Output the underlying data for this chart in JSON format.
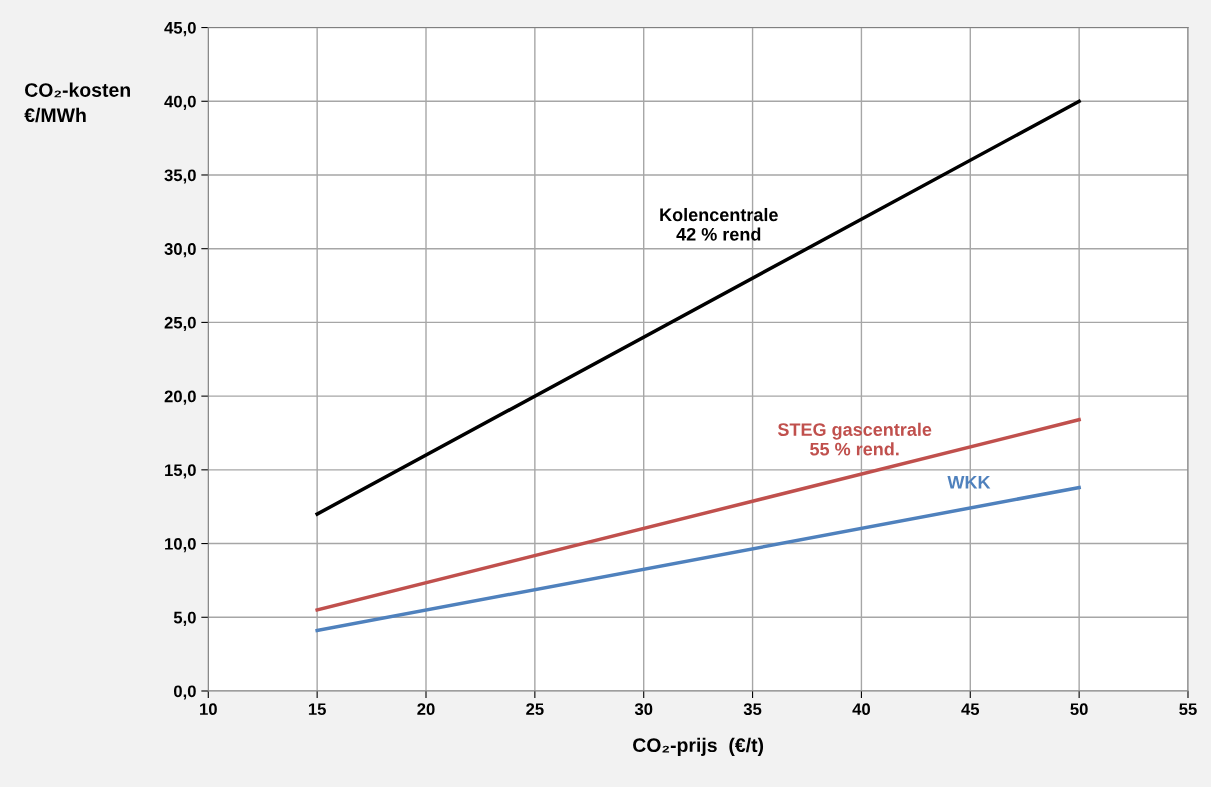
{
  "chart_data": {
    "type": "line",
    "xlabel": "CO₂-prijs  (€/t)",
    "ylabel": "CO₂-kosten\n€/MWh",
    "series": [
      {
        "name": "Kolencentrale\n42 % rend",
        "color": "#000000",
        "values": [
          12.0,
          40.0
        ]
      },
      {
        "name": "STEG gascentrale\n55 % rend.",
        "color": "#c0504d",
        "values": [
          5.5,
          18.4
        ]
      },
      {
        "name": "WKK",
        "color": "#4f81bd",
        "values": [
          4.1,
          13.8
        ]
      }
    ],
    "x": [
      15,
      50
    ],
    "xlim": [
      10,
      55
    ],
    "xticks": [
      10,
      15,
      20,
      25,
      30,
      35,
      40,
      45,
      50,
      55
    ],
    "ylim": [
      0,
      45
    ],
    "yticks": [
      {
        "value": 0,
        "label": "0,0"
      },
      {
        "value": 5,
        "label": "5,0"
      },
      {
        "value": 10,
        "label": "10,0"
      },
      {
        "value": 15,
        "label": "15,0"
      },
      {
        "value": 20,
        "label": "20,0"
      },
      {
        "value": 25,
        "label": "25,0"
      },
      {
        "value": 30,
        "label": "30,0"
      },
      {
        "value": 35,
        "label": "35,0"
      },
      {
        "value": 40,
        "label": "40,0"
      },
      {
        "value": 45,
        "label": "45,0"
      }
    ],
    "grid": true,
    "legend": false,
    "marker": "none",
    "line_style": "solid"
  }
}
